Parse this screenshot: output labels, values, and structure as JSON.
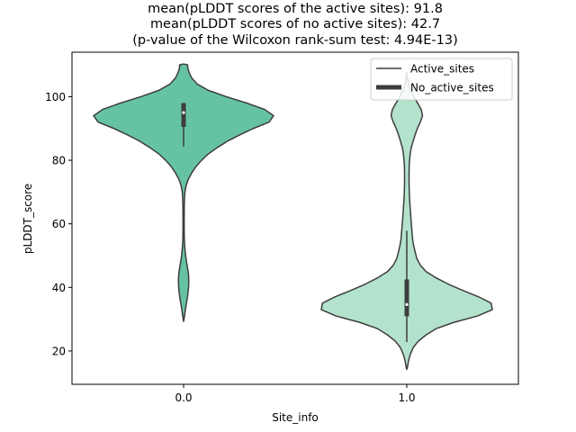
{
  "chart_data": {
    "type": "violin",
    "title_lines": [
      "mean(pLDDT scores of the active sites): 91.8",
      "mean(pLDDT scores of no active sites): 42.7",
      "(p-value of the Wilcoxon rank-sum test: 4.94E-13)"
    ],
    "xlabel": "Site_info",
    "ylabel": "pLDDT_score",
    "categories": [
      "0.0",
      "1.0"
    ],
    "ylim": [
      9.5,
      114
    ],
    "yticks": [
      20,
      40,
      60,
      80,
      100
    ],
    "legend": {
      "placement": "top-right",
      "entries": [
        "Active_sites",
        "No_active_sites"
      ]
    },
    "colors": {
      "violin_0": "#66c2a5",
      "violin_1": "#b3e2cd",
      "edge": "#3d3d3d"
    },
    "series": [
      {
        "category": "0.0",
        "q1": 90.5,
        "median": 95.0,
        "q3": 98.0,
        "whisker_low": 84.3,
        "whisker_high": 98.0,
        "density": [
          [
            29.3,
            0.0
          ],
          [
            30.5,
            0.006
          ],
          [
            32,
            0.012
          ],
          [
            34,
            0.02
          ],
          [
            36,
            0.03
          ],
          [
            38,
            0.038
          ],
          [
            40,
            0.044
          ],
          [
            42,
            0.046
          ],
          [
            44,
            0.044
          ],
          [
            46,
            0.036
          ],
          [
            48,
            0.026
          ],
          [
            50,
            0.018
          ],
          [
            52,
            0.012
          ],
          [
            54,
            0.008
          ],
          [
            56,
            0.006
          ],
          [
            60,
            0.005
          ],
          [
            65,
            0.006
          ],
          [
            68,
            0.008
          ],
          [
            70,
            0.012
          ],
          [
            72,
            0.022
          ],
          [
            74,
            0.042
          ],
          [
            76,
            0.072
          ],
          [
            78,
            0.11
          ],
          [
            80,
            0.16
          ],
          [
            82,
            0.22
          ],
          [
            84,
            0.3
          ],
          [
            86,
            0.39
          ],
          [
            88,
            0.5
          ],
          [
            90,
            0.62
          ],
          [
            92,
            0.76
          ],
          [
            94,
            0.8
          ],
          [
            96,
            0.72
          ],
          [
            98,
            0.56
          ],
          [
            100,
            0.38
          ],
          [
            102,
            0.22
          ],
          [
            104,
            0.12
          ],
          [
            106,
            0.07
          ],
          [
            108,
            0.045
          ],
          [
            109.2,
            0.036
          ],
          [
            110,
            0.036
          ],
          [
            110.3,
            0.0
          ]
        ]
      },
      {
        "category": "1.0",
        "q1": 30.9,
        "median": 34.6,
        "q3": 42.5,
        "whisker_low": 22.8,
        "whisker_high": 57.8,
        "density": [
          [
            14.2,
            0.0
          ],
          [
            15,
            0.006
          ],
          [
            17,
            0.016
          ],
          [
            19,
            0.032
          ],
          [
            21,
            0.056
          ],
          [
            23,
            0.1
          ],
          [
            25,
            0.17
          ],
          [
            27,
            0.26
          ],
          [
            29,
            0.42
          ],
          [
            31,
            0.63
          ],
          [
            33,
            0.76
          ],
          [
            35,
            0.75
          ],
          [
            37,
            0.64
          ],
          [
            39,
            0.5
          ],
          [
            41,
            0.37
          ],
          [
            43,
            0.26
          ],
          [
            45,
            0.17
          ],
          [
            47,
            0.12
          ],
          [
            49,
            0.09
          ],
          [
            51,
            0.075
          ],
          [
            53,
            0.062
          ],
          [
            55,
            0.052
          ],
          [
            58,
            0.045
          ],
          [
            61,
            0.038
          ],
          [
            64,
            0.032
          ],
          [
            67,
            0.026
          ],
          [
            70,
            0.022
          ],
          [
            73,
            0.02
          ],
          [
            76,
            0.02
          ],
          [
            79,
            0.022
          ],
          [
            82,
            0.03
          ],
          [
            84,
            0.04
          ],
          [
            86,
            0.056
          ],
          [
            88,
            0.074
          ],
          [
            90,
            0.094
          ],
          [
            92,
            0.12
          ],
          [
            94,
            0.14
          ],
          [
            96,
            0.128
          ],
          [
            98,
            0.096
          ],
          [
            100,
            0.062
          ],
          [
            102,
            0.034
          ],
          [
            104,
            0.016
          ],
          [
            106,
            0.006
          ],
          [
            107.6,
            0.0
          ]
        ]
      }
    ]
  }
}
